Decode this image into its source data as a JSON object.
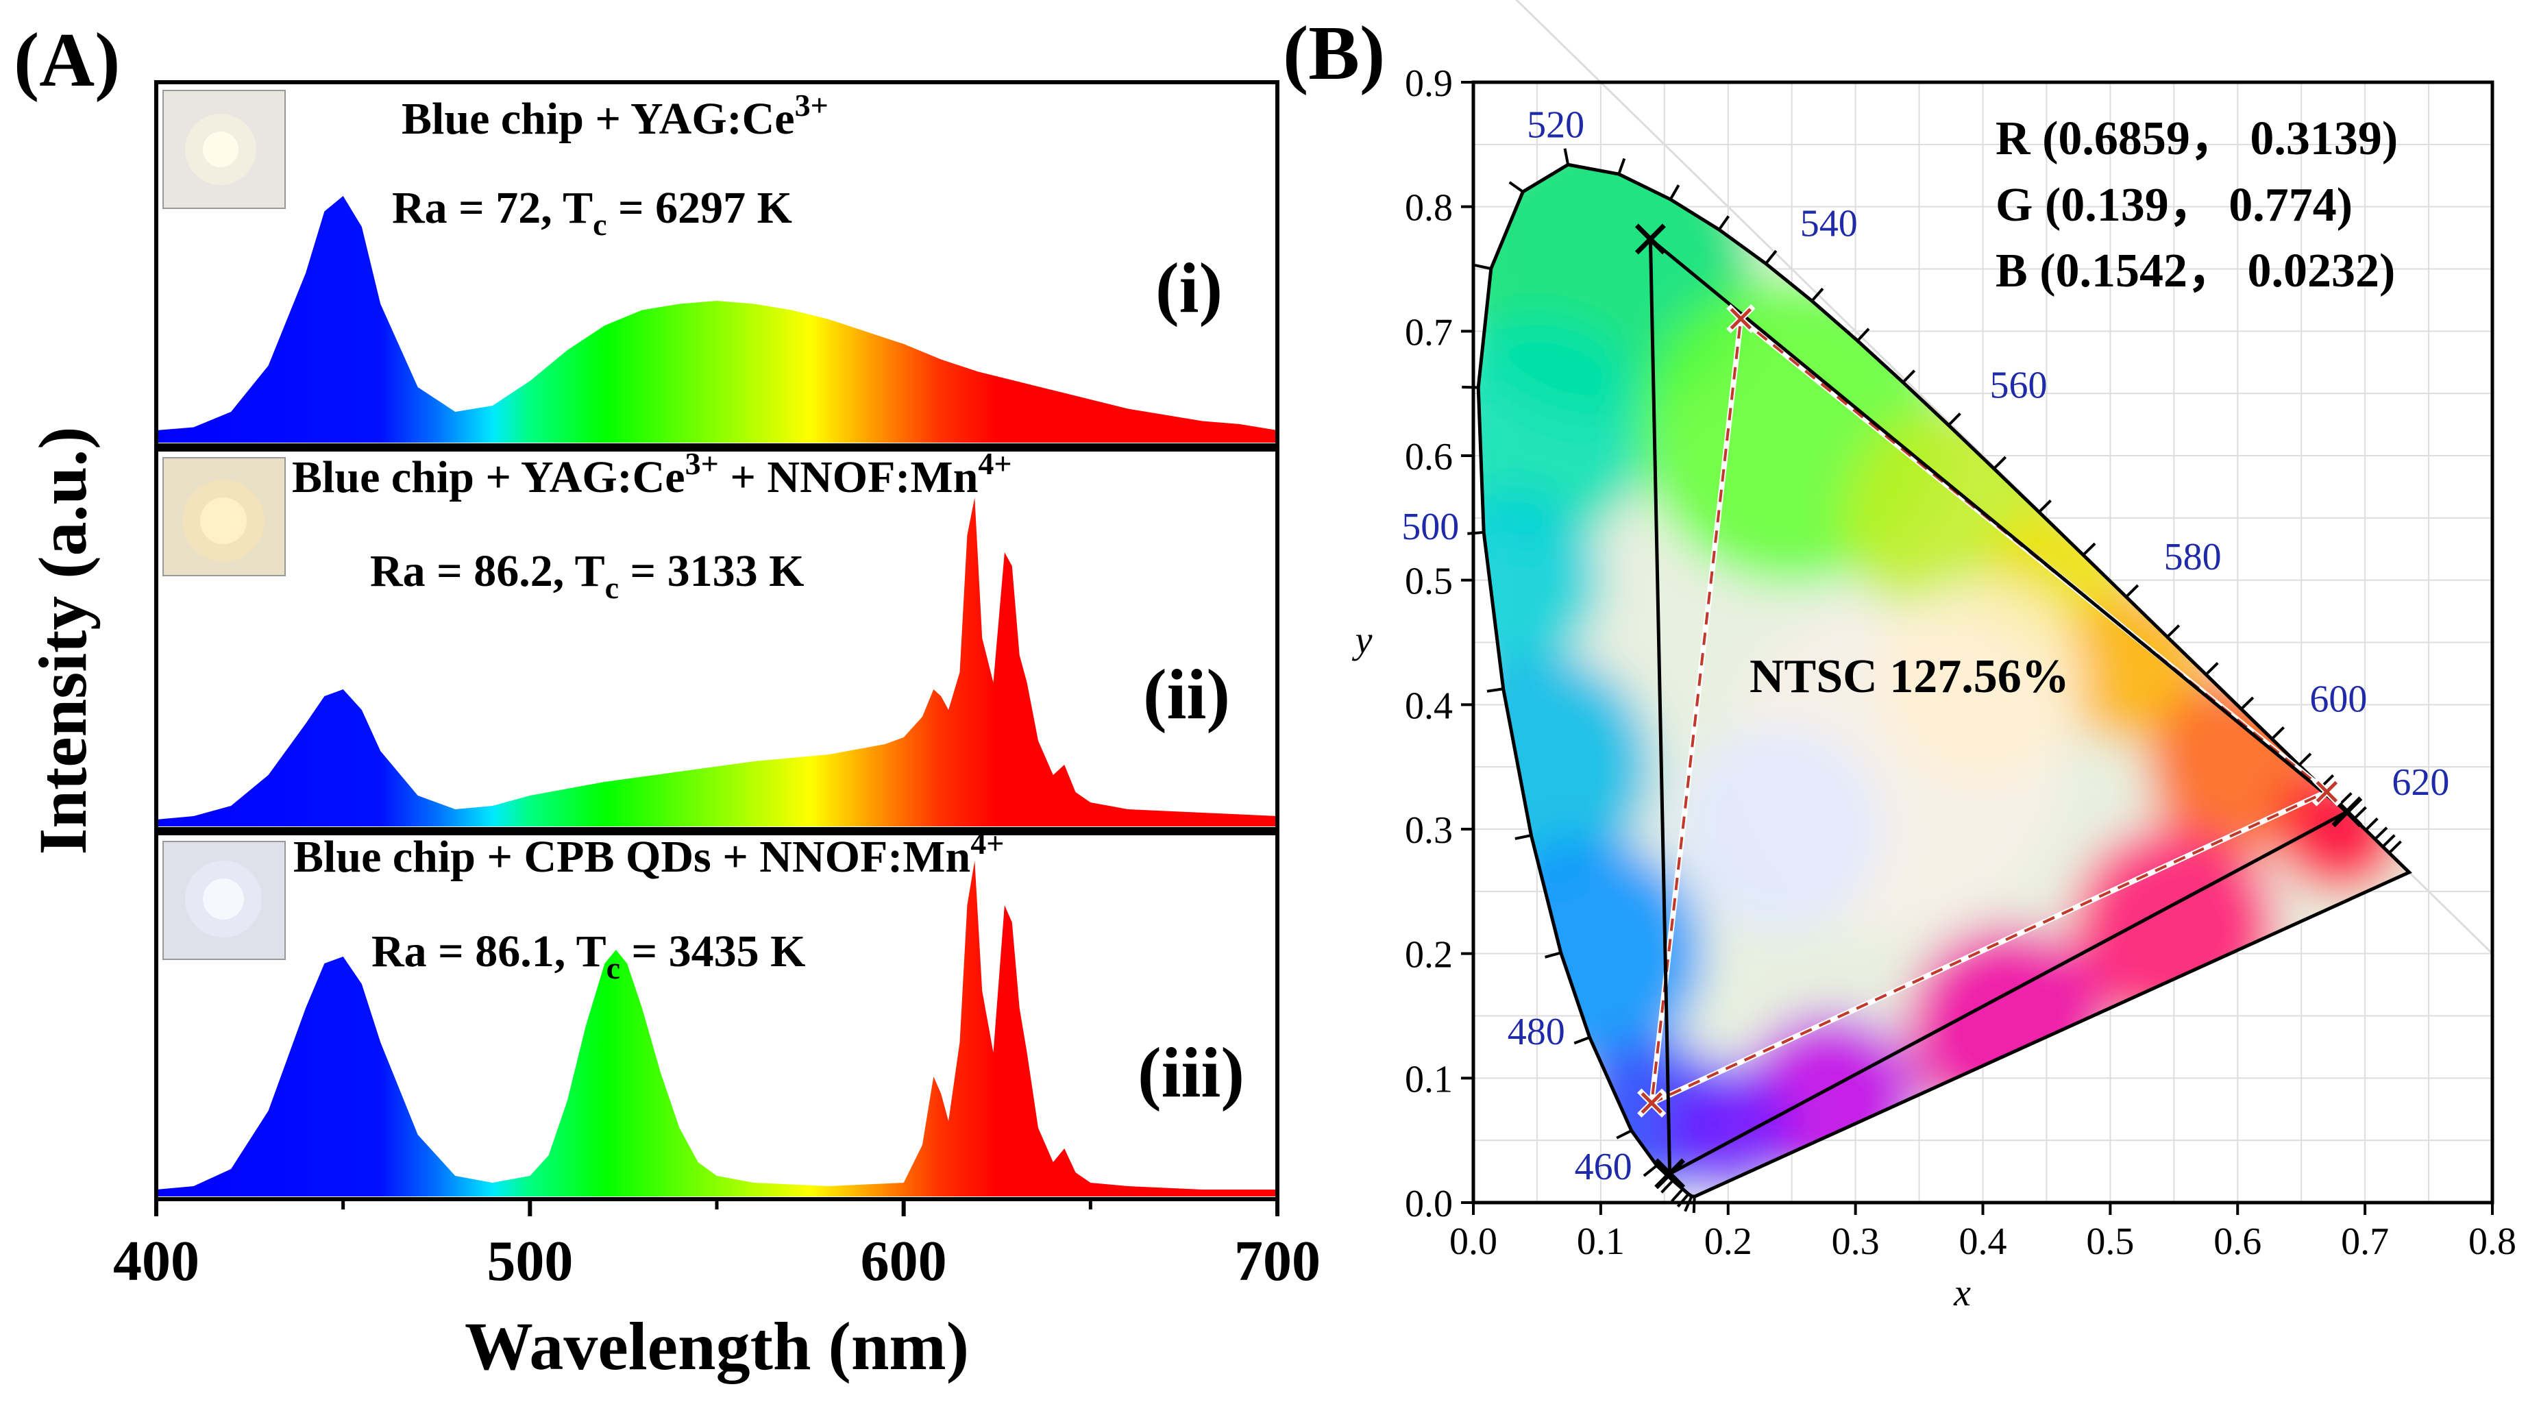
{
  "panel_a": {
    "label": "(A)",
    "photo_colors": [
      "#e7e6e1",
      "#eadfc7",
      "#dfe1ea"
    ],
    "panels": [
      {
        "roman": "(i)",
        "line1": "Blue chip + YAG:Ce",
        "line1_sup": "3+",
        "line1_tail": "",
        "line1_tail_sup": "",
        "ra": "Ra = 72, T",
        "ra_sub": "c",
        "ra_tail": " = 6297 K"
      },
      {
        "roman": "(ii)",
        "line1": "Blue chip + YAG:Ce",
        "line1_sup": "3+",
        "line1_tail": " + NNOF:Mn",
        "line1_tail_sup": "4+",
        "ra": "Ra = 86.2, T",
        "ra_sub": "c",
        "ra_tail": " = 3133 K"
      },
      {
        "roman": "(iii)",
        "line1": "Blue chip + CPB QDs + NNOF:Mn",
        "line1_sup": "4+",
        "line1_tail": "",
        "line1_tail_sup": "",
        "ra": "Ra = 86.1, T",
        "ra_sub": "c",
        "ra_tail": " = 3435 K"
      }
    ]
  },
  "panel_b": {
    "label": "(B)",
    "coords": [
      {
        "letter": "R",
        "text": "(0.6859， 0.3139)"
      },
      {
        "letter": "G",
        "text": "(0.139， 0.774)"
      },
      {
        "letter": "B",
        "text": "(0.1542， 0.0232)"
      }
    ],
    "ntsc_label": "NTSC 127.56%",
    "locus_wavelengths": [
      "520",
      "540",
      "560",
      "580",
      "600",
      "620",
      "500",
      "480",
      "460"
    ]
  },
  "chart_data": [
    {
      "type": "area",
      "xlabel": "Wavelength (nm)",
      "ylabel": "Intensity (a.u.)",
      "xlim": [
        400,
        700
      ],
      "xticks": [
        "400",
        "500",
        "600",
        "700"
      ],
      "series": [
        {
          "x": [
            400,
            410,
            420,
            430,
            440,
            445,
            450,
            455,
            460,
            470,
            480,
            490,
            500,
            510,
            520,
            530,
            540,
            550,
            560,
            570,
            580,
            590,
            600,
            610,
            620,
            630,
            640,
            650,
            660,
            670,
            680,
            690,
            700
          ],
          "y": [
            0.04,
            0.05,
            0.1,
            0.25,
            0.55,
            0.75,
            0.8,
            0.7,
            0.45,
            0.18,
            0.1,
            0.12,
            0.2,
            0.3,
            0.38,
            0.43,
            0.45,
            0.46,
            0.45,
            0.43,
            0.4,
            0.36,
            0.32,
            0.27,
            0.23,
            0.2,
            0.17,
            0.14,
            0.11,
            0.09,
            0.07,
            0.06,
            0.04
          ]
        },
        {
          "x": [
            400,
            410,
            420,
            430,
            440,
            445,
            450,
            455,
            460,
            470,
            480,
            490,
            500,
            520,
            540,
            560,
            580,
            595,
            600,
            605,
            608,
            610,
            612,
            615,
            617,
            619,
            621,
            624,
            627,
            629,
            631,
            633,
            636,
            640,
            643,
            646,
            650,
            660,
            680,
            700
          ],
          "y": [
            0.02,
            0.03,
            0.06,
            0.15,
            0.3,
            0.38,
            0.4,
            0.34,
            0.22,
            0.09,
            0.05,
            0.06,
            0.09,
            0.13,
            0.16,
            0.19,
            0.21,
            0.24,
            0.26,
            0.32,
            0.4,
            0.38,
            0.34,
            0.45,
            0.85,
            0.96,
            0.55,
            0.42,
            0.8,
            0.76,
            0.5,
            0.42,
            0.25,
            0.15,
            0.18,
            0.1,
            0.07,
            0.05,
            0.04,
            0.03
          ]
        },
        {
          "x": [
            400,
            410,
            420,
            430,
            440,
            445,
            450,
            455,
            460,
            470,
            480,
            490,
            500,
            505,
            510,
            515,
            520,
            523,
            526,
            530,
            535,
            540,
            545,
            550,
            560,
            580,
            600,
            605,
            608,
            610,
            612,
            615,
            617,
            619,
            621,
            624,
            627,
            629,
            631,
            633,
            636,
            640,
            643,
            646,
            650,
            660,
            680,
            700
          ],
          "y": [
            0.02,
            0.03,
            0.08,
            0.25,
            0.55,
            0.68,
            0.7,
            0.62,
            0.45,
            0.18,
            0.06,
            0.04,
            0.06,
            0.12,
            0.28,
            0.5,
            0.68,
            0.72,
            0.68,
            0.55,
            0.36,
            0.2,
            0.1,
            0.06,
            0.04,
            0.03,
            0.04,
            0.15,
            0.35,
            0.3,
            0.22,
            0.45,
            0.85,
            0.98,
            0.6,
            0.42,
            0.85,
            0.8,
            0.55,
            0.42,
            0.2,
            0.1,
            0.14,
            0.07,
            0.04,
            0.03,
            0.02,
            0.02
          ]
        }
      ]
    },
    {
      "type": "scatter",
      "xlabel": "x",
      "ylabel": "y",
      "xlim": [
        0.0,
        0.8
      ],
      "ylim": [
        0.0,
        0.9
      ],
      "xticks": [
        "0.0",
        "0.1",
        "0.2",
        "0.3",
        "0.4",
        "0.5",
        "0.6",
        "0.7",
        "0.8"
      ],
      "yticks": [
        "0.0",
        "0.1",
        "0.2",
        "0.3",
        "0.4",
        "0.5",
        "0.6",
        "0.7",
        "0.8",
        "0.9"
      ],
      "locus": [
        [
          0.1741,
          0.005
        ],
        [
          0.1736,
          0.0049
        ],
        [
          0.1714,
          0.0051
        ],
        [
          0.1689,
          0.0069
        ],
        [
          0.1644,
          0.0109
        ],
        [
          0.1566,
          0.0177
        ],
        [
          0.144,
          0.0297
        ],
        [
          0.1241,
          0.0578
        ],
        [
          0.0913,
          0.1327
        ],
        [
          0.0687,
          0.2007
        ],
        [
          0.0454,
          0.295
        ],
        [
          0.0235,
          0.4127
        ],
        [
          0.0082,
          0.5384
        ],
        [
          0.0039,
          0.6548
        ],
        [
          0.0139,
          0.7502
        ],
        [
          0.0389,
          0.812
        ],
        [
          0.0743,
          0.8338
        ],
        [
          0.1142,
          0.8262
        ],
        [
          0.1547,
          0.8059
        ],
        [
          0.1929,
          0.7816
        ],
        [
          0.2296,
          0.7543
        ],
        [
          0.2658,
          0.7243
        ],
        [
          0.3016,
          0.6923
        ],
        [
          0.3373,
          0.6589
        ],
        [
          0.3731,
          0.6245
        ],
        [
          0.4087,
          0.5896
        ],
        [
          0.4441,
          0.5547
        ],
        [
          0.4788,
          0.5202
        ],
        [
          0.5125,
          0.4866
        ],
        [
          0.5448,
          0.4544
        ],
        [
          0.5752,
          0.4242
        ],
        [
          0.6029,
          0.3965
        ],
        [
          0.627,
          0.3725
        ],
        [
          0.6482,
          0.3514
        ],
        [
          0.6658,
          0.334
        ],
        [
          0.6801,
          0.3197
        ],
        [
          0.6915,
          0.3083
        ],
        [
          0.7006,
          0.2993
        ],
        [
          0.7079,
          0.292
        ],
        [
          0.714,
          0.2859
        ],
        [
          0.719,
          0.2809
        ],
        [
          0.7347,
          0.2653
        ]
      ],
      "wavelength_marks": [
        {
          "nm": "520",
          "x": 0.0743,
          "y": 0.8338
        },
        {
          "nm": "540",
          "x": 0.2296,
          "y": 0.7543
        },
        {
          "nm": "560",
          "x": 0.3731,
          "y": 0.6245
        },
        {
          "nm": "580",
          "x": 0.5125,
          "y": 0.4866
        },
        {
          "nm": "600",
          "x": 0.627,
          "y": 0.3725
        },
        {
          "nm": "620",
          "x": 0.6915,
          "y": 0.3083
        },
        {
          "nm": "500",
          "x": 0.0082,
          "y": 0.5384
        },
        {
          "nm": "480",
          "x": 0.0913,
          "y": 0.1327
        },
        {
          "nm": "460",
          "x": 0.144,
          "y": 0.0297
        }
      ],
      "sample_triangle": [
        [
          0.6859,
          0.3139
        ],
        [
          0.139,
          0.774
        ],
        [
          0.1542,
          0.0232
        ]
      ],
      "ntsc_triangle": [
        [
          0.67,
          0.33
        ],
        [
          0.21,
          0.71
        ],
        [
          0.14,
          0.08
        ]
      ],
      "grid": true
    }
  ]
}
